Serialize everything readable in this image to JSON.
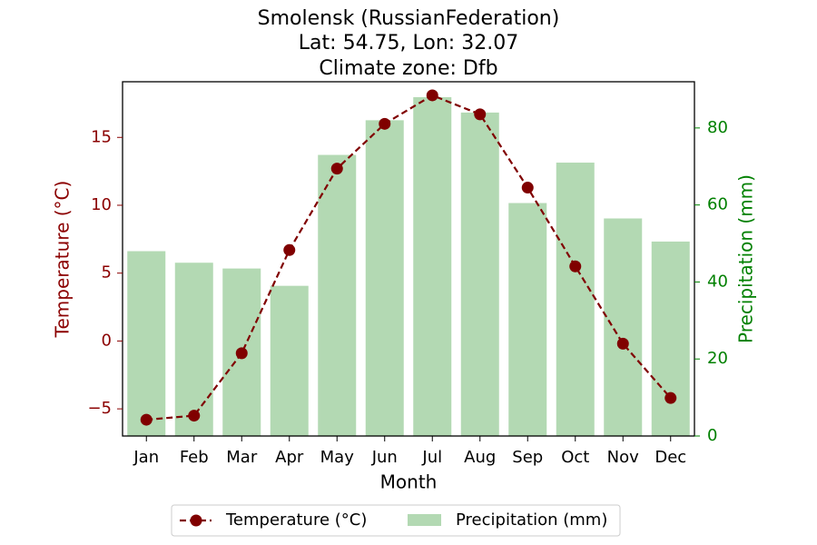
{
  "chart_data": {
    "type": "bar+line",
    "title_lines": [
      "Smolensk (RussianFederation)",
      "Lat: 54.75, Lon: 32.07",
      "Climate zone: Dfb"
    ],
    "xlabel": "Month",
    "ylabel_left": "Temperature (°C)",
    "ylabel_right": "Precipitation (mm)",
    "categories": [
      "Jan",
      "Feb",
      "Mar",
      "Apr",
      "May",
      "Jun",
      "Jul",
      "Aug",
      "Sep",
      "Oct",
      "Nov",
      "Dec"
    ],
    "temperature": {
      "name": "Temperature (°C)",
      "values": [
        -5.8,
        -5.5,
        -0.9,
        6.7,
        12.7,
        16.0,
        18.1,
        16.7,
        11.3,
        5.5,
        -0.2,
        -4.2
      ],
      "color": "#800000"
    },
    "precipitation": {
      "name": "Precipitation (mm)",
      "values": [
        48,
        45,
        43.5,
        39,
        73,
        82,
        88,
        84,
        60.5,
        71,
        56.5,
        50.5
      ],
      "color": "#b3d9b3"
    },
    "ylim_left": [
      -7,
      19.1
    ],
    "ylim_right": [
      0,
      92
    ],
    "yticks_left": [
      -5,
      0,
      5,
      10,
      15
    ],
    "yticks_left_labels": [
      "−5",
      "0",
      "5",
      "10",
      "15"
    ],
    "yticks_right": [
      0,
      20,
      40,
      60,
      80
    ],
    "yticks_right_labels": [
      "0",
      "20",
      "40",
      "60",
      "80"
    ],
    "left_axis_color": "#8b0000",
    "right_axis_color": "#008000",
    "legend_position": "bottom-center",
    "grid": false
  }
}
